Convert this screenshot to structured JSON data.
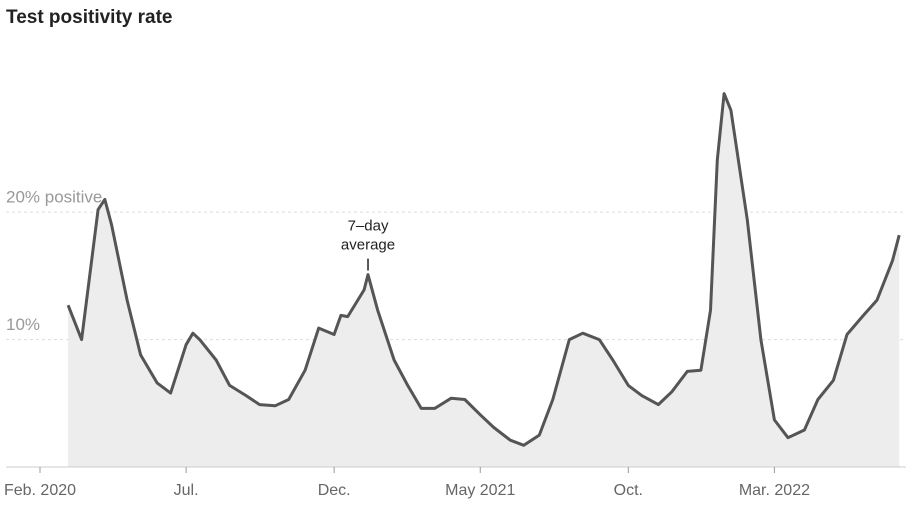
{
  "chart_data": {
    "type": "line",
    "title": "Test positivity rate",
    "annotation": [
      "7–day",
      "average"
    ],
    "x": [
      "2020-03-01",
      "2020-03-15",
      "2020-04-01",
      "2020-04-08",
      "2020-04-15",
      "2020-05-01",
      "2020-05-15",
      "2020-06-01",
      "2020-06-15",
      "2020-07-01",
      "2020-07-08",
      "2020-07-15",
      "2020-08-01",
      "2020-08-15",
      "2020-09-01",
      "2020-09-15",
      "2020-10-01",
      "2020-10-15",
      "2020-11-01",
      "2020-11-15",
      "2020-12-01",
      "2020-12-08",
      "2020-12-15",
      "2021-01-01",
      "2021-01-05",
      "2021-01-15",
      "2021-02-01",
      "2021-02-15",
      "2021-03-01",
      "2021-03-15",
      "2021-04-01",
      "2021-04-15",
      "2021-05-01",
      "2021-05-15",
      "2021-06-01",
      "2021-06-15",
      "2021-07-01",
      "2021-07-15",
      "2021-08-01",
      "2021-08-15",
      "2021-09-01",
      "2021-09-15",
      "2021-10-01",
      "2021-10-15",
      "2021-11-01",
      "2021-11-15",
      "2021-12-01",
      "2021-12-15",
      "2021-12-25",
      "2022-01-01",
      "2022-01-08",
      "2022-01-15",
      "2022-02-01",
      "2022-02-15",
      "2022-03-01",
      "2022-03-15",
      "2022-04-01",
      "2022-04-15",
      "2022-05-01",
      "2022-05-15",
      "2022-06-01",
      "2022-06-15",
      "2022-07-01",
      "2022-07-08"
    ],
    "series": [
      {
        "name": "7–day average",
        "color": "#555555",
        "fill": "#ededed",
        "values": [
          12.7,
          10,
          20.2,
          21,
          19,
          13.1,
          8.8,
          6.6,
          5.8,
          9.6,
          10.5,
          10,
          8.4,
          6.4,
          5.6,
          4.9,
          4.8,
          5.3,
          7.6,
          10.9,
          10.4,
          11.9,
          11.8,
          13.9,
          15.1,
          12.3,
          8.4,
          6.4,
          4.6,
          4.6,
          5.4,
          5.3,
          4.1,
          3.1,
          2.1,
          1.7,
          2.5,
          5.3,
          10,
          10.5,
          10,
          8.4,
          6.4,
          5.6,
          4.9,
          5.9,
          7.5,
          7.6,
          12.3,
          24.1,
          29.3,
          28,
          19.4,
          10,
          3.7,
          2.3,
          2.9,
          5.3,
          6.8,
          10.4,
          11.9,
          13.1,
          16.2,
          18.2
        ]
      }
    ],
    "xlim": [
      "2020-02-01",
      "2022-07-15"
    ],
    "xticks": [
      {
        "value": "2020-02-01",
        "label": "Feb. 2020"
      },
      {
        "value": "2020-07-01",
        "label": "Jul."
      },
      {
        "value": "2020-12-01",
        "label": "Dec."
      },
      {
        "value": "2021-05-01",
        "label": "May 2021"
      },
      {
        "value": "2021-10-01",
        "label": "Oct."
      },
      {
        "value": "2022-03-01",
        "label": "Mar. 2022"
      }
    ],
    "ylim": [
      0,
      35
    ],
    "yticks": [
      {
        "value": 10,
        "label": "10%"
      },
      {
        "value": 20,
        "label": "20% positive"
      }
    ],
    "grid": true
  }
}
